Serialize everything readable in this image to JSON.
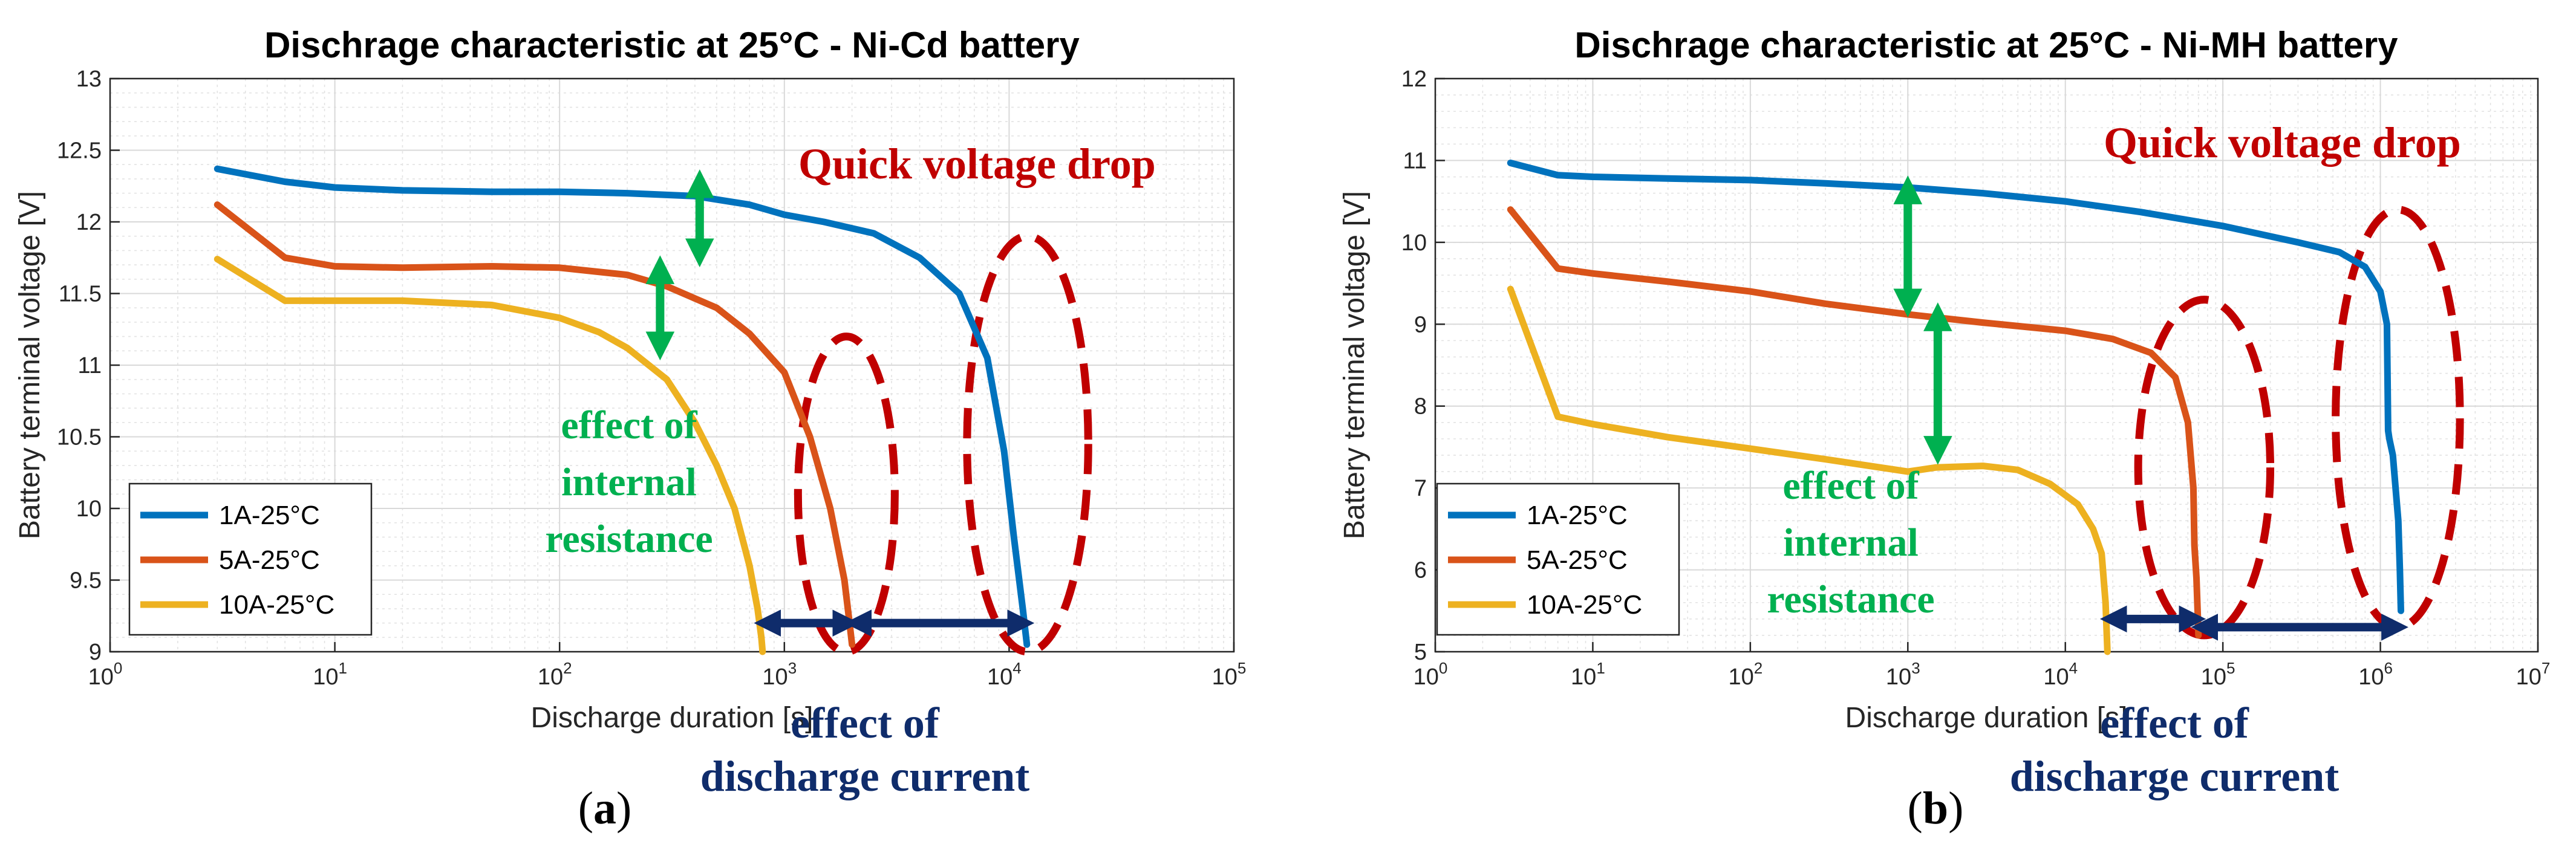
{
  "colors": {
    "series_1a": "#0072bd",
    "series_5a": "#d95319",
    "series_10a": "#edb120",
    "annotation_red": "#c00000",
    "annotation_green": "#00b050",
    "annotation_navy": "#0f2c6b"
  },
  "chart_data": [
    {
      "type": "line",
      "panel_label": "(a)",
      "panel_label_parts": [
        "(",
        "a",
        ")"
      ],
      "title": "Dischrage characteristic at 25°C - Ni-Cd battery",
      "xlabel": "Discharge duration [s]",
      "ylabel": "Battery terminal voltage [V]",
      "xscale": "log",
      "xlim": [
        1,
        100000
      ],
      "ylim": [
        9,
        13
      ],
      "x_ticks": [
        1,
        10,
        100,
        1000,
        10000,
        100000
      ],
      "x_tick_labels": [
        {
          "base": "10",
          "exp": "0"
        },
        {
          "base": "10",
          "exp": "1"
        },
        {
          "base": "10",
          "exp": "2"
        },
        {
          "base": "10",
          "exp": "3"
        },
        {
          "base": "10",
          "exp": "4"
        },
        {
          "base": "10",
          "exp": "5"
        }
      ],
      "y_ticks": [
        9,
        9.5,
        10,
        10.5,
        11,
        11.5,
        12,
        12.5,
        13
      ],
      "y_tick_labels": [
        "9",
        "9.5",
        "10",
        "10.5",
        "11",
        "11.5",
        "12",
        "12.5",
        "13"
      ],
      "grid": true,
      "legend": {
        "position": "bottom-left",
        "entries": [
          "1A-25°C",
          "5A-25°C",
          "10A-25°C"
        ]
      },
      "series": [
        {
          "name": "1A-25°C",
          "x": [
            3,
            6,
            10,
            20,
            50,
            100,
            200,
            400,
            700,
            1000,
            1500,
            2500,
            4000,
            6000,
            8000,
            9500,
            10500,
            11500,
            12000
          ],
          "y": [
            12.37,
            12.28,
            12.24,
            12.22,
            12.21,
            12.21,
            12.2,
            12.18,
            12.12,
            12.05,
            12.0,
            11.92,
            11.75,
            11.5,
            11.05,
            10.4,
            9.8,
            9.3,
            9.05
          ]
        },
        {
          "name": "5A-25°C",
          "x": [
            3,
            6,
            10,
            20,
            50,
            100,
            200,
            300,
            500,
            700,
            1000,
            1300,
            1600,
            1850,
            1950,
            2000
          ],
          "y": [
            12.12,
            11.75,
            11.69,
            11.68,
            11.69,
            11.68,
            11.63,
            11.55,
            11.4,
            11.22,
            10.95,
            10.5,
            10.0,
            9.5,
            9.2,
            9.05
          ]
        },
        {
          "name": "10A-25°C",
          "x": [
            3,
            6,
            10,
            20,
            50,
            100,
            150,
            200,
            300,
            400,
            500,
            600,
            700,
            760,
            790,
            800
          ],
          "y": [
            11.74,
            11.45,
            11.45,
            11.45,
            11.42,
            11.33,
            11.23,
            11.12,
            10.9,
            10.6,
            10.3,
            10.0,
            9.6,
            9.3,
            9.1,
            9.0
          ]
        }
      ],
      "annotations": {
        "quick_drop": "Quick voltage drop",
        "internal_line1": "effect of",
        "internal_line2": "internal",
        "internal_line3": "resistance",
        "current_line1": "effect of",
        "current_line2": "discharge current"
      },
      "green_arrows": [
        {
          "x": 420,
          "y1": 11.75,
          "y2": 12.3
        },
        {
          "x": 280,
          "y1": 11.1,
          "y2": 11.7
        }
      ],
      "navy_arrows": [
        {
          "x1": 790,
          "x2": 2000,
          "y": 9.2
        },
        {
          "x1": 2000,
          "x2": 12000,
          "y": 9.2
        }
      ],
      "ellipses": [
        {
          "x1": 1150,
          "x2": 3100,
          "y1": 9.0,
          "y2": 11.2
        },
        {
          "x1": 6500,
          "x2": 22500,
          "y1": 9.0,
          "y2": 11.9
        }
      ]
    },
    {
      "type": "line",
      "panel_label": "(b)",
      "panel_label_parts": [
        "(",
        "b",
        ")"
      ],
      "title": "Dischrage characteristic at 25°C - Ni-MH battery",
      "xlabel": "Discharge duration [s]",
      "ylabel": "Battery terminal voltage [V]",
      "xscale": "log",
      "xlim": [
        1,
        10000000
      ],
      "ylim": [
        5,
        12
      ],
      "x_ticks": [
        1,
        10,
        100,
        1000,
        10000,
        100000,
        1000000,
        10000000
      ],
      "x_tick_labels": [
        {
          "base": "10",
          "exp": "0"
        },
        {
          "base": "10",
          "exp": "1"
        },
        {
          "base": "10",
          "exp": "2"
        },
        {
          "base": "10",
          "exp": "3"
        },
        {
          "base": "10",
          "exp": "4"
        },
        {
          "base": "10",
          "exp": "5"
        },
        {
          "base": "10",
          "exp": "6"
        },
        {
          "base": "10",
          "exp": "7"
        }
      ],
      "y_ticks": [
        5,
        6,
        7,
        8,
        9,
        10,
        11,
        12
      ],
      "y_tick_labels": [
        "5",
        "6",
        "7",
        "8",
        "9",
        "10",
        "11",
        "12"
      ],
      "grid": true,
      "legend": {
        "position": "bottom-left",
        "entries": [
          "1A-25°C",
          "5A-25°C",
          "10A-25°C"
        ]
      },
      "series": [
        {
          "name": "1A-25°C",
          "x": [
            3,
            6,
            10,
            30,
            100,
            300,
            1000,
            3000,
            10000,
            30000,
            100000,
            300000,
            550000,
            800000,
            1000000,
            1100000,
            1120000,
            1140000,
            1200000,
            1300000,
            1330000,
            1350000
          ],
          "y": [
            10.97,
            10.82,
            10.8,
            10.78,
            10.76,
            10.72,
            10.67,
            10.6,
            10.5,
            10.37,
            10.2,
            10.0,
            9.88,
            9.7,
            9.4,
            9.0,
            7.7,
            7.6,
            7.4,
            6.6,
            6.0,
            5.5
          ]
        },
        {
          "name": "5A-25°C",
          "x": [
            3,
            6,
            10,
            30,
            100,
            300,
            1000,
            3000,
            10000,
            20000,
            35000,
            50000,
            60000,
            65000,
            66000,
            68000,
            70000
          ],
          "y": [
            10.4,
            9.68,
            9.62,
            9.52,
            9.4,
            9.25,
            9.12,
            9.02,
            8.92,
            8.82,
            8.65,
            8.35,
            7.8,
            7.0,
            6.3,
            5.9,
            5.2
          ]
        },
        {
          "name": "10A-25°C",
          "x": [
            3,
            6,
            10,
            30,
            100,
            300,
            1000,
            1500,
            3000,
            5000,
            8000,
            12000,
            15000,
            17000,
            18000,
            18500
          ],
          "y": [
            9.43,
            7.87,
            7.78,
            7.62,
            7.48,
            7.35,
            7.2,
            7.25,
            7.27,
            7.22,
            7.05,
            6.8,
            6.5,
            6.2,
            5.6,
            5.0
          ]
        }
      ],
      "annotations": {
        "quick_drop": "Quick voltage drop",
        "internal_line1": "effect of",
        "internal_line2": "internal",
        "internal_line3": "resistance",
        "current_line1": "effect of",
        "current_line2": "discharge current"
      },
      "green_arrows": [
        {
          "x": 1000,
          "y1": 9.2,
          "y2": 10.7
        },
        {
          "x": 1550,
          "y1": 7.4,
          "y2": 9.15
        }
      ],
      "navy_arrows": [
        {
          "x1": 18500,
          "x2": 70000,
          "y": 5.4
        },
        {
          "x1": 70000,
          "x2": 1350000,
          "y": 5.3
        }
      ],
      "ellipses": [
        {
          "x1": 29000,
          "x2": 200000,
          "y1": 5.2,
          "y2": 9.3
        },
        {
          "x1": 520000,
          "x2": 3200000,
          "y1": 5.3,
          "y2": 10.4
        }
      ]
    }
  ]
}
